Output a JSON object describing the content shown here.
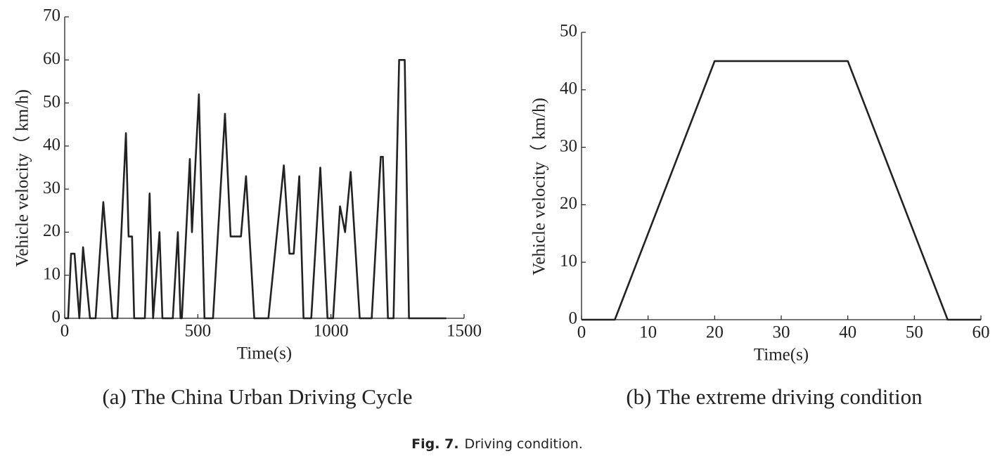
{
  "chart_data": [
    {
      "type": "line",
      "caption": "(a) The China Urban Driving Cycle",
      "xlabel": "Time(s)",
      "ylabel": "Vehicle velocity（ km/h)",
      "xlim": [
        0,
        1500
      ],
      "ylim": [
        0,
        70
      ],
      "xticks": [
        0,
        500,
        1000,
        1500
      ],
      "yticks": [
        0,
        10,
        20,
        30,
        40,
        50,
        60,
        70
      ],
      "color": "#222222",
      "x": [
        0,
        13,
        24,
        37,
        55,
        69,
        95,
        116,
        145,
        179,
        198,
        230,
        240,
        253,
        261,
        301,
        319,
        332,
        356,
        367,
        406,
        425,
        435,
        440,
        470,
        478,
        504,
        525,
        557,
        602,
        623,
        662,
        681,
        712,
        765,
        823,
        844,
        860,
        881,
        897,
        926,
        960,
        987,
        1008,
        1034,
        1053,
        1074,
        1108,
        1153,
        1187,
        1195,
        1214,
        1235,
        1256,
        1277,
        1293,
        1433
      ],
      "values": [
        0,
        0,
        15,
        15,
        0,
        16.5,
        0,
        0,
        27,
        0,
        0,
        43,
        19,
        19,
        0,
        0,
        29,
        0,
        20,
        0,
        0,
        20,
        0,
        0,
        37,
        20,
        52,
        0,
        0,
        47.5,
        19,
        19,
        33,
        0,
        0,
        35.5,
        15,
        15,
        33,
        0,
        0,
        35,
        0,
        0,
        26,
        20,
        34,
        0,
        0,
        37.5,
        37.5,
        0,
        0,
        60,
        60,
        0,
        0
      ]
    },
    {
      "type": "line",
      "caption": "(b) The extreme driving condition",
      "xlabel": "Time(s)",
      "ylabel": "Vehicle velocity（ km/h)",
      "xlim": [
        0,
        60
      ],
      "ylim": [
        0,
        50
      ],
      "xticks": [
        0,
        10,
        20,
        30,
        40,
        50,
        60
      ],
      "yticks": [
        0,
        10,
        20,
        30,
        40,
        50
      ],
      "color": "#222222",
      "x": [
        0,
        5,
        20,
        40,
        55,
        60
      ],
      "values": [
        0,
        0,
        45,
        45,
        0,
        0
      ]
    }
  ],
  "figure_caption": {
    "label": "Fig. 7.",
    "text": "Driving condition."
  }
}
